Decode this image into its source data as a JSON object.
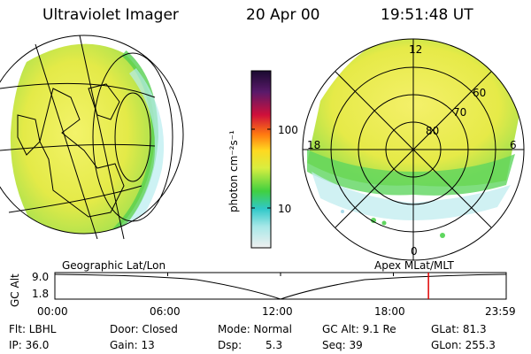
{
  "header": {
    "title": "Ultraviolet Imager",
    "date": "20 Apr 00",
    "time": "19:51:48 UT"
  },
  "colorbar": {
    "unit_label": "photon cm⁻²s⁻¹",
    "ticks": [
      "100",
      "10"
    ]
  },
  "polar": {
    "mlt_top": "12",
    "mlt_left": "18",
    "mlt_right": "6",
    "mlt_bottom": "0",
    "lat_labels": [
      "60",
      "70",
      "80"
    ]
  },
  "panel_labels": {
    "left": "Geographic Lat/Lon",
    "right": "Apex MLat/MLT"
  },
  "altitude_plot": {
    "ylabel": "GC Alt",
    "y_ticks": [
      "9.0",
      "1.8"
    ],
    "x_ticks": [
      "00:00",
      "06:00",
      "12:00",
      "18:00",
      "23:59"
    ],
    "current_time_fraction": 0.8277
  },
  "info": {
    "flt": "Flt: LBHL",
    "ip": "IP: 36.0",
    "door": "Door: Closed",
    "gain": "Gain: 13",
    "mode": "Mode: Normal",
    "dsp": "Dsp:",
    "dsp_val": "5.3",
    "gcalt": "GC Alt: 9.1 Re",
    "seq": "Seq: 39",
    "glat": "GLat: 81.3",
    "glon": "GLon: 255.3"
  },
  "colors": {
    "accent_line": "#e00000",
    "aurora_main": "#e8e84a",
    "aurora_edge": "#5fd65f"
  }
}
